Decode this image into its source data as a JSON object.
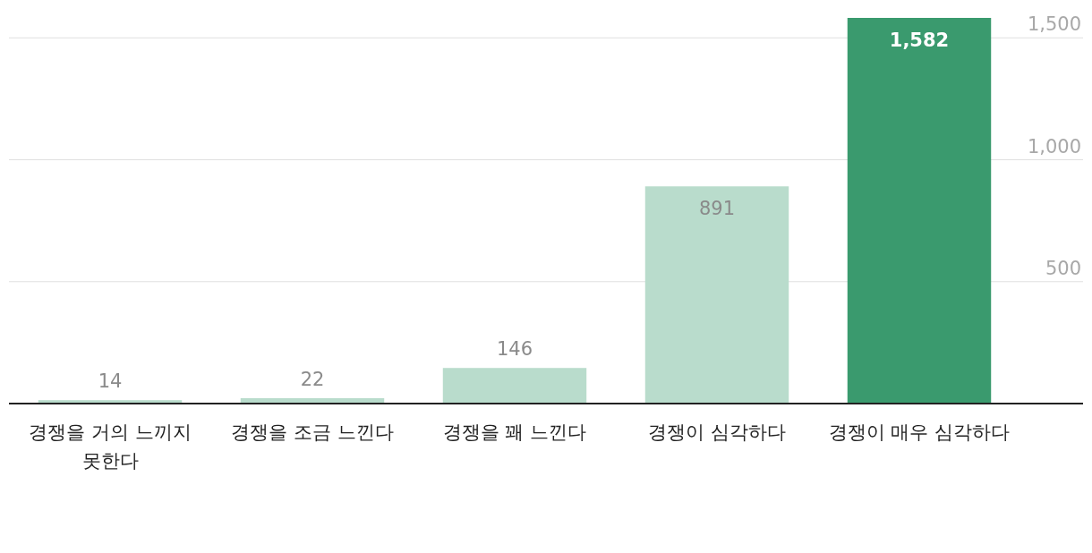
{
  "chart_data": {
    "type": "bar",
    "categories": [
      "경쟁을 거의 느끼지 못한다",
      "경쟁을 조금 느낀다",
      "경쟁을 꽤 느낀다",
      "경쟁이 심각하다",
      "경쟁이 매우 심각하다"
    ],
    "values": [
      14,
      22,
      146,
      891,
      1582
    ],
    "colors": [
      "#b9dccc",
      "#b9dccc",
      "#b9dccc",
      "#b9dccc",
      "#3a9a6e"
    ],
    "value_labels": [
      "14",
      "22",
      "146",
      "891",
      "1,582"
    ],
    "ylim": [
      0,
      1582
    ],
    "yticks": [
      {
        "value": 500,
        "label": "500"
      },
      {
        "value": 1000,
        "label": "1,000"
      },
      {
        "value": 1500,
        "label": "1,500"
      }
    ],
    "grid": "y"
  }
}
